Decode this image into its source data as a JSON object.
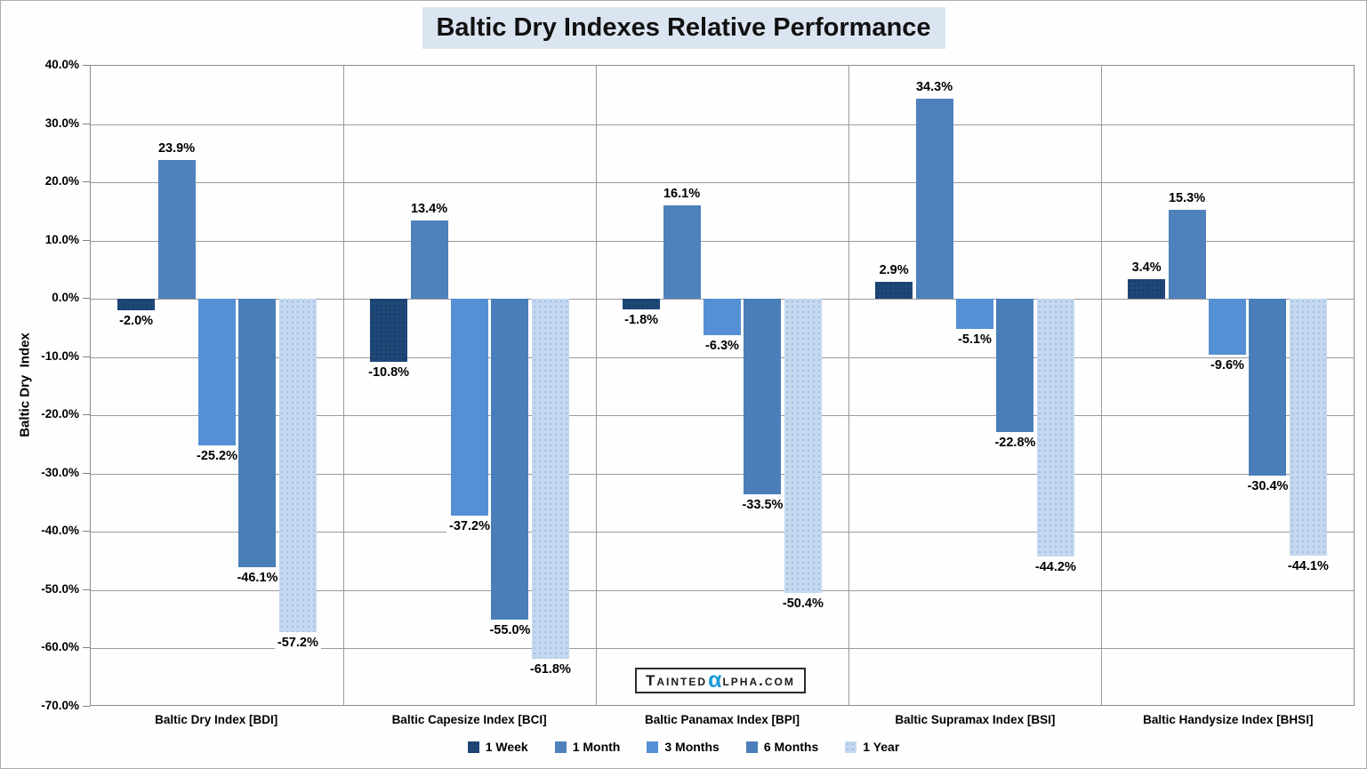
{
  "title": "Baltic Dry Indexes Relative Performance",
  "y_axis_title": "Baltic Dry  Index",
  "watermark": {
    "text_before": "Tainted",
    "alpha": "α",
    "text_after": "lpha.com",
    "alpha_color": "#1B9AD7"
  },
  "colors": {
    "title_background": "#DBE5F1",
    "gridline": "#9A9A9A",
    "plot_border": "#8C8C8C"
  },
  "chart_data": {
    "type": "bar",
    "title": "Baltic Dry Indexes Relative Performance",
    "xlabel": "",
    "ylabel": "Baltic Dry  Index",
    "ylim": [
      -70,
      40
    ],
    "ytick_step": 10,
    "grid": true,
    "legend_position": "bottom",
    "y_tick_labels": [
      "40.0%",
      "30.0%",
      "20.0%",
      "10.0%",
      "0.0%",
      "-10.0%",
      "-20.0%",
      "-30.0%",
      "-40.0%",
      "-50.0%",
      "-60.0%",
      "-70.0%"
    ],
    "categories": [
      "Baltic Dry Index [BDI]",
      "Baltic Capesize Index [BCI]",
      "Baltic Panamax Index [BPI]",
      "Baltic Supramax Index [BSI]",
      "Baltic Handysize Index [BHSI]"
    ],
    "series": [
      {
        "name": "1 Week",
        "color": "#1F4878",
        "pattern": "week",
        "values": [
          -2.0,
          -10.8,
          -1.8,
          2.9,
          3.4
        ],
        "labels": [
          "-2.0%",
          "-10.8%",
          "-1.8%",
          "2.9%",
          "3.4%"
        ]
      },
      {
        "name": "1 Month",
        "color": "#4F81BD",
        "pattern": "solid",
        "values": [
          23.9,
          13.4,
          16.1,
          34.3,
          15.3
        ],
        "labels": [
          "23.9%",
          "13.4%",
          "16.1%",
          "34.3%",
          "15.3%"
        ]
      },
      {
        "name": "3 Months",
        "color": "#5590D5",
        "pattern": "solid",
        "values": [
          -25.2,
          -37.2,
          -6.3,
          -5.1,
          -9.6
        ],
        "labels": [
          "-25.2%",
          "-37.2%",
          "-6.3%",
          "-5.1%",
          "-9.6%"
        ]
      },
      {
        "name": "6 Months",
        "color": "#4A7EB8",
        "pattern": "solid",
        "values": [
          -46.1,
          -55.0,
          -33.5,
          -22.8,
          -30.4
        ],
        "labels": [
          "-46.1%",
          "-55.0%",
          "-33.5%",
          "-22.8%",
          "-30.4%"
        ]
      },
      {
        "name": "1 Year",
        "color": "#C5D8EF",
        "pattern": "year",
        "values": [
          -57.2,
          -61.8,
          -50.4,
          -44.2,
          -44.1
        ],
        "labels": [
          "-57.2%",
          "-61.8%",
          "-50.4%",
          "-44.2%",
          "-44.1%"
        ]
      }
    ]
  }
}
